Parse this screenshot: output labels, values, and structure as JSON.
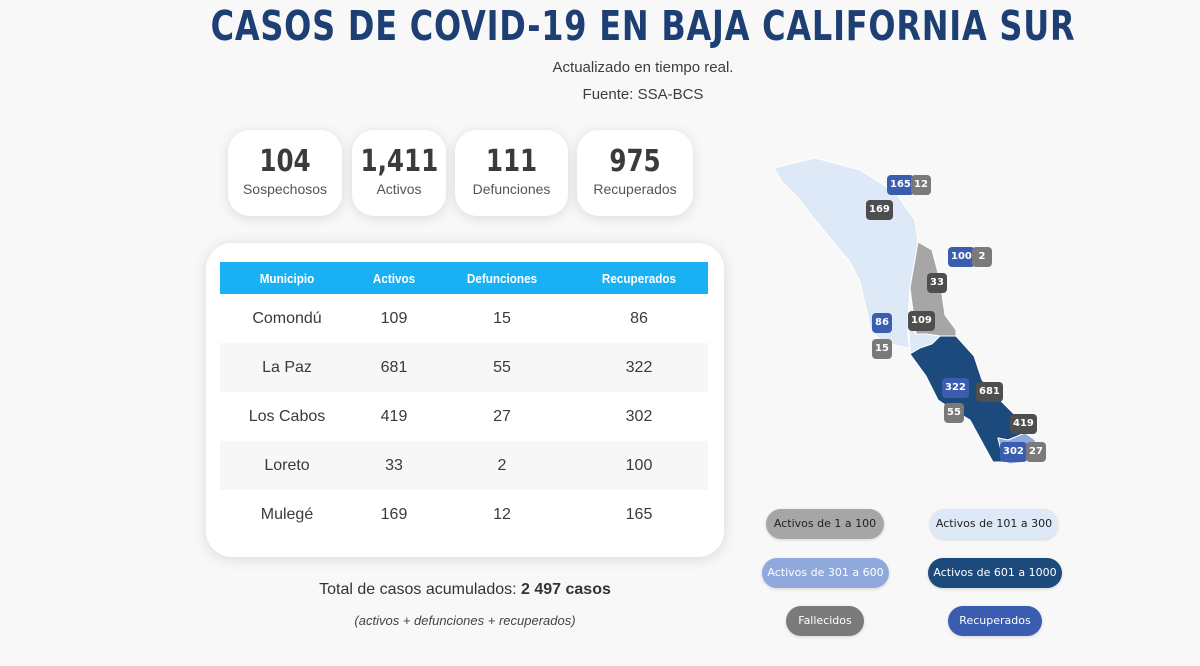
{
  "header": {
    "title": "CASOS DE COVID-19 EN BAJA CALIFORNIA SUR",
    "subtitle": "Actualizado en tiempo real.",
    "source": "Fuente: SSA-BCS"
  },
  "stats": [
    {
      "value": "104",
      "label": "Sospechosos"
    },
    {
      "value": "1,411",
      "label": "Activos"
    },
    {
      "value": "111",
      "label": "Defunciones"
    },
    {
      "value": "975",
      "label": "Recuperados"
    }
  ],
  "table": {
    "columns": [
      "Municipio",
      "Activos",
      "Defunciones",
      "Recuperados"
    ],
    "rows": [
      [
        "Comondú",
        "109",
        "15",
        "86"
      ],
      [
        "La Paz",
        "681",
        "55",
        "322"
      ],
      [
        "Los Cabos",
        "419",
        "27",
        "302"
      ],
      [
        "Loreto",
        "33",
        "2",
        "100"
      ],
      [
        "Mulegé",
        "169",
        "12",
        "165"
      ]
    ]
  },
  "totals": {
    "label": "Total de casos acumulados:",
    "value": "2 497 casos",
    "note": "(activos + defunciones + recuperados)"
  },
  "map": {
    "badges": {
      "mulege_recovered": "165",
      "mulege_deaths": "12",
      "mulege_active": "169",
      "loreto_recovered": "100",
      "loreto_deaths": "2",
      "loreto_active": "33",
      "comondu_recovered": "86",
      "comondu_deaths": "15",
      "comondu_active": "109",
      "lapaz_recovered": "322",
      "lapaz_deaths": "55",
      "lapaz_active": "681",
      "loscabos_active": "419",
      "loscabos_recovered": "302",
      "loscabos_deaths": "27"
    },
    "colors": {
      "range_1_100": "#a6a6a6",
      "range_101_300": "#dde9f7",
      "range_301_600": "#8fa9dd",
      "range_601_1000": "#1d4a7c",
      "deaths": "#7a7a7a",
      "recovered": "#3b5db0"
    }
  },
  "legend": {
    "r1": "Activos de 1 a 100",
    "r2": "Activos de 101 a 300",
    "r3": "Activos de 301 a 600",
    "r4": "Activos de 601 a 1000",
    "deaths": "Fallecidos",
    "recovered": "Recuperados"
  }
}
